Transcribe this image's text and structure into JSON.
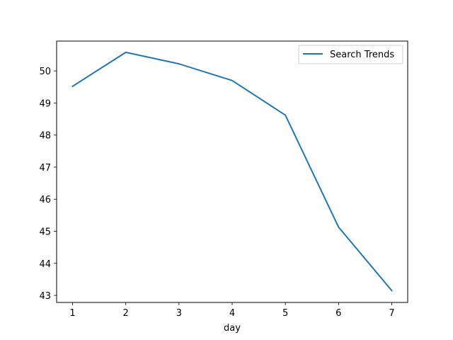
{
  "chart_data": {
    "type": "line",
    "title": "",
    "xlabel": "day",
    "ylabel": "",
    "x": [
      1,
      2,
      3,
      4,
      5,
      6,
      7
    ],
    "series": [
      {
        "name": "Search Trends",
        "values": [
          49.52,
          50.58,
          50.22,
          49.7,
          48.62,
          45.13,
          43.15
        ],
        "color": "#1f77b4"
      }
    ],
    "xticks": [
      "1",
      "2",
      "3",
      "4",
      "5",
      "6",
      "7"
    ],
    "yticks": [
      "43",
      "44",
      "45",
      "46",
      "47",
      "48",
      "49",
      "50"
    ],
    "xlim": [
      0.7,
      7.3
    ],
    "ylim": [
      42.78,
      50.93
    ],
    "grid": false,
    "legend_position": "top-right"
  }
}
